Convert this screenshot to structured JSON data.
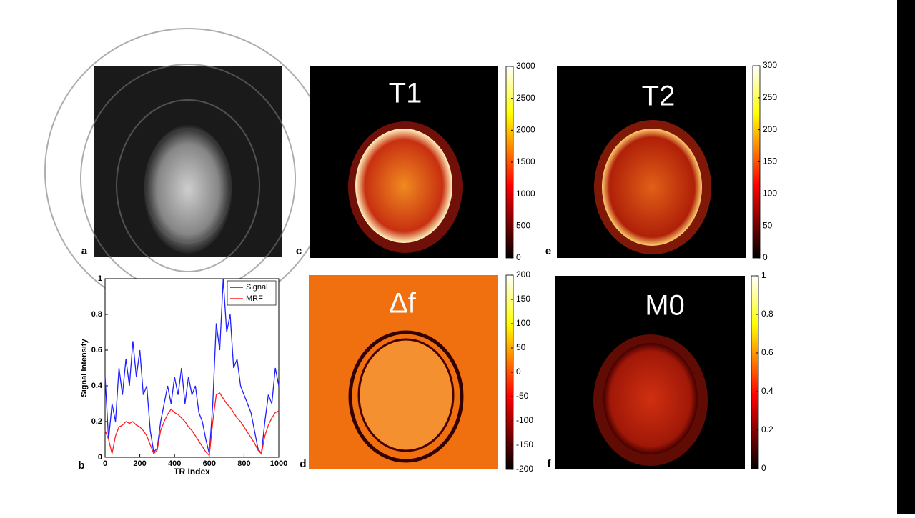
{
  "chart_data": {
    "type": "line",
    "x": [
      0,
      20,
      40,
      60,
      80,
      100,
      120,
      140,
      160,
      180,
      200,
      220,
      240,
      260,
      280,
      300,
      320,
      340,
      360,
      380,
      400,
      420,
      440,
      460,
      480,
      500,
      520,
      540,
      560,
      580,
      600,
      620,
      640,
      660,
      680,
      700,
      720,
      740,
      760,
      780,
      800,
      820,
      840,
      860,
      880,
      900,
      920,
      940,
      960,
      980,
      1000
    ],
    "series": [
      {
        "name": "Signal",
        "color": "#1f1fff",
        "values": [
          0.45,
          0.1,
          0.3,
          0.2,
          0.5,
          0.35,
          0.55,
          0.4,
          0.65,
          0.45,
          0.6,
          0.35,
          0.4,
          0.15,
          0.03,
          0.05,
          0.2,
          0.3,
          0.4,
          0.3,
          0.45,
          0.35,
          0.5,
          0.3,
          0.45,
          0.35,
          0.4,
          0.25,
          0.2,
          0.1,
          0.02,
          0.3,
          0.75,
          0.6,
          1.0,
          0.7,
          0.8,
          0.5,
          0.55,
          0.4,
          0.35,
          0.3,
          0.25,
          0.15,
          0.05,
          0.02,
          0.2,
          0.35,
          0.3,
          0.5,
          0.4
        ]
      },
      {
        "name": "MRF",
        "color": "#ff1f1f",
        "values": [
          0.15,
          0.1,
          0.02,
          0.12,
          0.17,
          0.18,
          0.2,
          0.19,
          0.2,
          0.18,
          0.17,
          0.15,
          0.12,
          0.07,
          0.02,
          0.04,
          0.15,
          0.2,
          0.24,
          0.27,
          0.25,
          0.24,
          0.22,
          0.2,
          0.17,
          0.15,
          0.12,
          0.09,
          0.06,
          0.03,
          0.01,
          0.2,
          0.35,
          0.36,
          0.33,
          0.3,
          0.28,
          0.25,
          0.22,
          0.2,
          0.17,
          0.14,
          0.11,
          0.08,
          0.04,
          0.02,
          0.12,
          0.18,
          0.22,
          0.25,
          0.26
        ]
      }
    ],
    "xlabel": "TR Index",
    "ylabel": "Signal Intensity",
    "xlim": [
      0,
      1000
    ],
    "xticks": [
      0,
      200,
      400,
      600,
      800,
      1000
    ],
    "ylim": [
      0,
      1
    ],
    "yticks": [
      0,
      0.2,
      0.4,
      0.6,
      0.8,
      1
    ],
    "legend": "upper right"
  },
  "panels": [
    {
      "letter": "a"
    },
    {
      "letter": "b"
    },
    {
      "letter": "c",
      "title": "T1",
      "colorbar": {
        "lim": [
          0,
          3000
        ],
        "ticks": [
          0,
          500,
          1000,
          1500,
          2000,
          2500,
          3000
        ]
      }
    },
    {
      "letter": "d",
      "title": "Δf",
      "colorbar": {
        "lim": [
          -200,
          200
        ],
        "ticks": [
          -200,
          -150,
          -100,
          -50,
          0,
          50,
          100,
          150,
          200
        ]
      }
    },
    {
      "letter": "e",
      "title": "T2",
      "colorbar": {
        "lim": [
          0,
          300
        ],
        "ticks": [
          0,
          50,
          100,
          150,
          200,
          250,
          300
        ]
      }
    },
    {
      "letter": "f",
      "title": "M0",
      "colorbar": {
        "lim": [
          0,
          1
        ],
        "ticks": [
          0,
          0.2,
          0.4,
          0.6,
          0.8,
          1
        ]
      }
    }
  ]
}
